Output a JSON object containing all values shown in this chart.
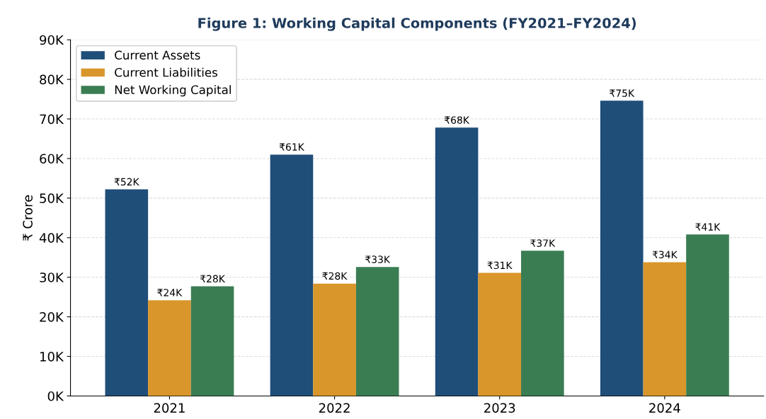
{
  "chart_data": {
    "type": "bar",
    "title": "Figure 1: Working Capital Components (FY2021–FY2024)",
    "ylabel": "₹ Crore",
    "categories": [
      "2021",
      "2022",
      "2023",
      "2024"
    ],
    "series": [
      {
        "name": "Current Assets",
        "color": "#1f4e79",
        "values": [
          52200,
          61000,
          67800,
          74600
        ],
        "value_labels": [
          "₹52K",
          "₹61K",
          "₹68K",
          "₹75K"
        ]
      },
      {
        "name": "Current Liabilities",
        "color": "#d9962b",
        "values": [
          24200,
          28400,
          31100,
          33800
        ],
        "value_labels": [
          "₹24K",
          "₹28K",
          "₹31K",
          "₹34K"
        ]
      },
      {
        "name": "Net Working Capital",
        "color": "#3a7d53",
        "values": [
          27700,
          32600,
          36700,
          40800
        ],
        "value_labels": [
          "₹28K",
          "₹33K",
          "₹37K",
          "₹41K"
        ]
      }
    ],
    "ylim": [
      0,
      90000
    ],
    "yticks": [
      {
        "value": 0,
        "label": "0K"
      },
      {
        "value": 10000,
        "label": "10K"
      },
      {
        "value": 20000,
        "label": "20K"
      },
      {
        "value": 30000,
        "label": "30K"
      },
      {
        "value": 40000,
        "label": "40K"
      },
      {
        "value": 50000,
        "label": "50K"
      },
      {
        "value": 60000,
        "label": "60K"
      },
      {
        "value": 70000,
        "label": "70K"
      },
      {
        "value": 80000,
        "label": "80K"
      },
      {
        "value": 90000,
        "label": "90K"
      }
    ],
    "grid": "y",
    "legend": "upper left"
  }
}
